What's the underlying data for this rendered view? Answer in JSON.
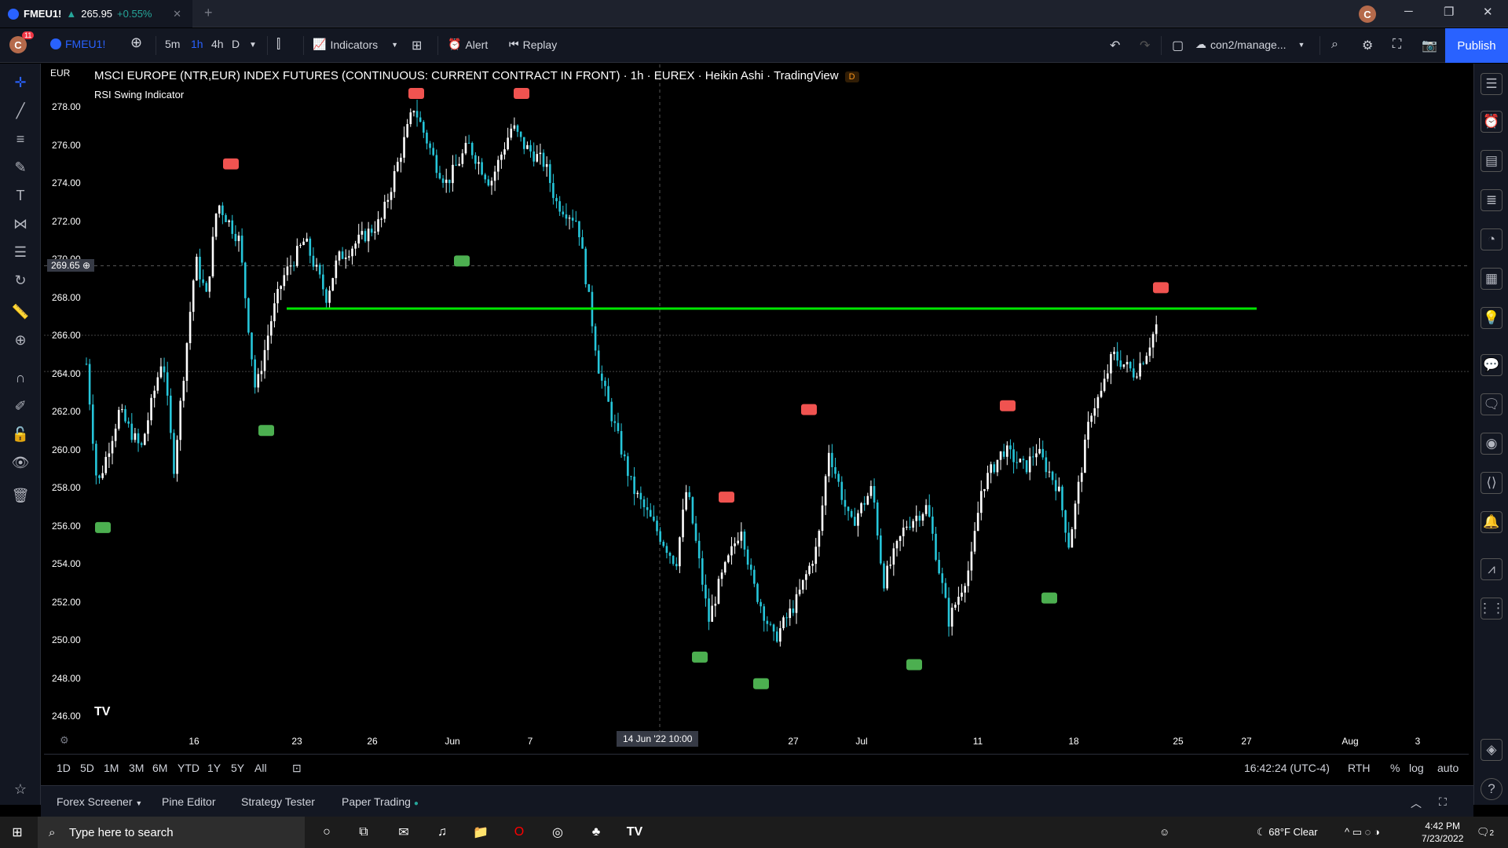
{
  "tab": {
    "ticker": "FMEU1!",
    "price": "265.95",
    "change": "+0.55%"
  },
  "window": {
    "avatar": "C"
  },
  "toolbar": {
    "avatar": "C",
    "badge": "11",
    "symbol": "FMEU1!",
    "tf": [
      "5m",
      "1h",
      "4h",
      "D"
    ],
    "indicators": "Indicators",
    "alert": "Alert",
    "replay": "Replay",
    "layout": "con2/manage...",
    "publish": "Publish"
  },
  "chart": {
    "currency": "EUR",
    "title": "MSCI EUROPE (NTR,EUR) INDEX FUTURES (CONTINUOUS: CURRENT CONTRACT IN FRONT) · 1h · EUREX · Heikin Ashi · TradingView",
    "indicator": "RSI Swing Indicator",
    "badge": "D",
    "price_tag": "269.65",
    "crosshair_time": "14 Jun '22   10:00",
    "y_labels": [
      "278.00",
      "276.00",
      "274.00",
      "272.00",
      "270.00",
      "268.00",
      "266.00",
      "264.00",
      "262.00",
      "260.00",
      "258.00",
      "256.00",
      "254.00",
      "252.00",
      "250.00",
      "248.00",
      "246.00"
    ],
    "x_labels": [
      "16",
      "23",
      "26",
      "Jun",
      "7",
      "27",
      "Jul",
      "11",
      "18",
      "25",
      "27",
      "Aug",
      "3"
    ],
    "colors": {
      "up": "#ffffff",
      "down": "#26c6da",
      "level_line": "#00e600",
      "sell": "#f05350",
      "buy": "#4caf50"
    }
  },
  "chart_data": {
    "type": "candlestick",
    "style": "Heikin Ashi",
    "ylim": [
      246,
      279
    ],
    "horizontal_line": 267.4,
    "crosshair_price": 269.65,
    "path": [
      [
        0,
        264.5
      ],
      [
        0.01,
        258
      ],
      [
        0.03,
        262
      ],
      [
        0.05,
        260
      ],
      [
        0.07,
        265
      ],
      [
        0.08,
        259
      ],
      [
        0.1,
        270
      ],
      [
        0.11,
        268
      ],
      [
        0.12,
        273
      ],
      [
        0.14,
        271
      ],
      [
        0.155,
        263
      ],
      [
        0.17,
        267
      ],
      [
        0.18,
        269
      ],
      [
        0.2,
        271
      ],
      [
        0.22,
        268
      ],
      [
        0.23,
        270
      ],
      [
        0.25,
        271
      ],
      [
        0.27,
        272
      ],
      [
        0.29,
        276
      ],
      [
        0.3,
        278
      ],
      [
        0.32,
        275
      ],
      [
        0.33,
        274
      ],
      [
        0.35,
        276
      ],
      [
        0.37,
        274
      ],
      [
        0.39,
        277
      ],
      [
        0.4,
        276
      ],
      [
        0.42,
        275
      ],
      [
        0.43,
        273
      ],
      [
        0.45,
        272
      ],
      [
        0.47,
        264
      ],
      [
        0.49,
        260
      ],
      [
        0.5,
        258
      ],
      [
        0.52,
        256
      ],
      [
        0.54,
        254
      ],
      [
        0.55,
        258
      ],
      [
        0.57,
        251
      ],
      [
        0.58,
        253
      ],
      [
        0.6,
        256
      ],
      [
        0.61,
        253
      ],
      [
        0.63,
        250
      ],
      [
        0.65,
        252
      ],
      [
        0.67,
        255
      ],
      [
        0.68,
        260
      ],
      [
        0.7,
        256
      ],
      [
        0.72,
        258
      ],
      [
        0.73,
        253
      ],
      [
        0.75,
        256
      ],
      [
        0.77,
        257
      ],
      [
        0.78,
        254
      ],
      [
        0.79,
        251
      ],
      [
        0.81,
        254
      ],
      [
        0.82,
        258
      ],
      [
        0.84,
        260
      ],
      [
        0.86,
        259
      ],
      [
        0.87,
        260
      ],
      [
        0.89,
        258
      ],
      [
        0.9,
        255
      ],
      [
        0.92,
        262
      ],
      [
        0.93,
        263
      ],
      [
        0.94,
        265
      ],
      [
        0.96,
        264
      ],
      [
        0.97,
        265
      ],
      [
        0.98,
        266.5
      ]
    ],
    "sell_markers": [
      275,
      278.7,
      278.7,
      257.5,
      262.1,
      262.3,
      268.5
    ],
    "buy_markers": [
      255.9,
      261,
      269.9,
      249.1,
      247.7,
      248.7,
      252.2
    ]
  },
  "rangebar": {
    "ranges": [
      "1D",
      "5D",
      "1M",
      "3M",
      "6M",
      "YTD",
      "1Y",
      "5Y",
      "All"
    ],
    "time": "16:42:24 (UTC-4)",
    "session": "RTH",
    "pct": "%",
    "log": "log",
    "auto": "auto"
  },
  "bottom": {
    "tabs": [
      "Forex Screener",
      "Pine Editor",
      "Strategy Tester",
      "Paper Trading"
    ]
  },
  "taskbar": {
    "search": "Type here to search",
    "weather": "68°F  Clear",
    "time": "4:42 PM",
    "date": "7/23/2022",
    "notif": "2"
  }
}
